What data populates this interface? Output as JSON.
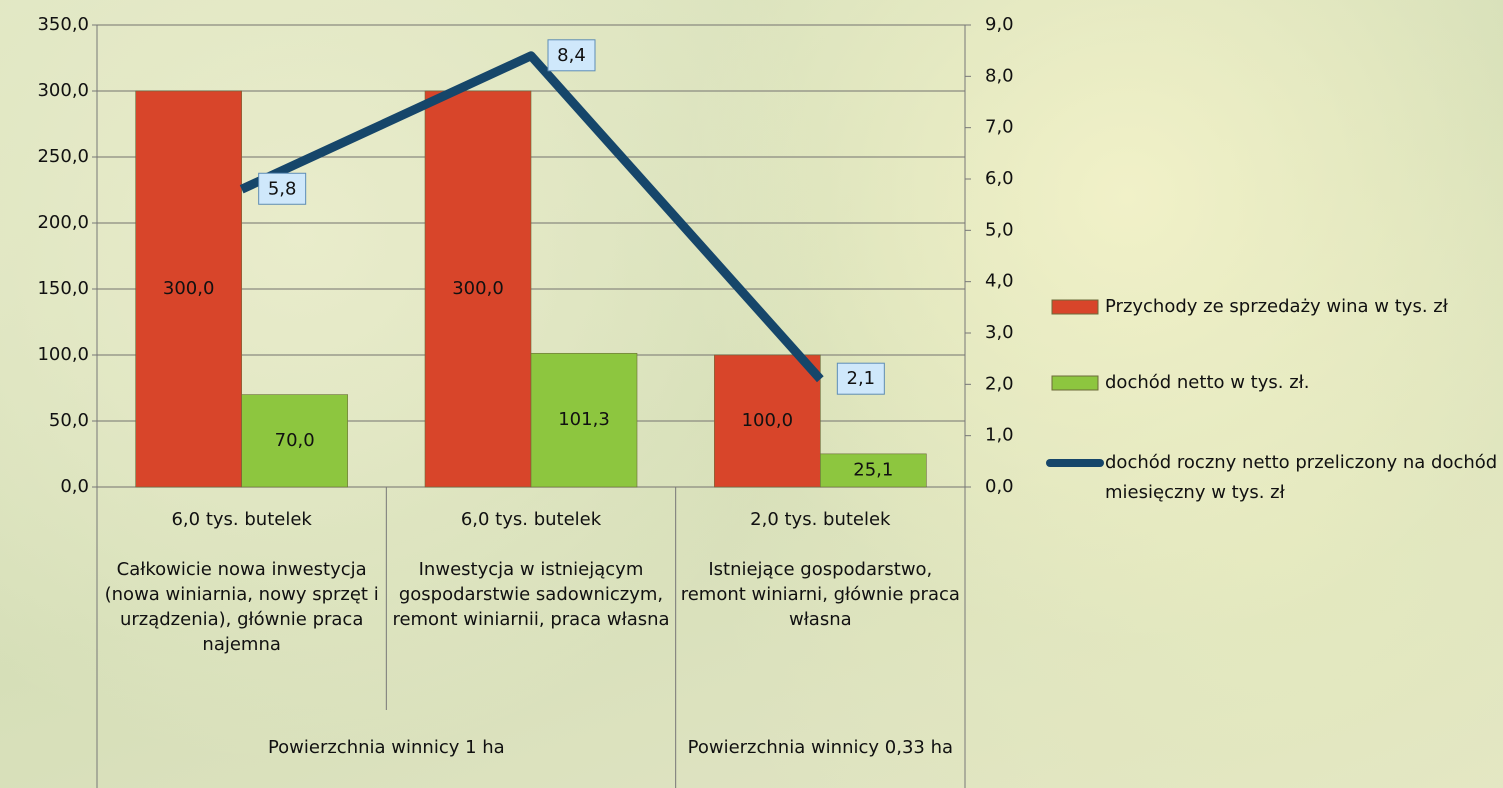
{
  "chart_data": {
    "type": "bar",
    "categories": [
      "6,0 tys. butelek",
      "6,0 tys. butelek",
      "2,0 tys. butelek"
    ],
    "category_descriptions": [
      "Całkowicie nowa inwestycja (nowa winiarnia, nowy sprzęt i urządzenia), głównie praca najemna",
      "Inwestycja w istniejącym gospodarstwie sadowniczym, remont winiarnii, praca własna",
      "Istniejące gospodarstwo, remont winiarni, głównie praca własna"
    ],
    "category_groups": [
      "Powierzchnia winnicy 1 ha",
      "Powierzchnia winnicy 1 ha",
      "Powierzchnia winnicy 0,33 ha"
    ],
    "series": [
      {
        "name": "Przychody ze sprzedaży wina w tys. zł",
        "type": "bar",
        "color": "#d8452a",
        "values": [
          300,
          300,
          100
        ],
        "value_labels": [
          "300,0",
          "300,0",
          "100,0"
        ]
      },
      {
        "name": "dochód netto w tys. zł.",
        "type": "bar",
        "color": "#8dc63f",
        "values": [
          70,
          101.3,
          25.1
        ],
        "value_labels": [
          "70,0",
          "101,3",
          "25,1"
        ]
      },
      {
        "name": "dochód roczny netto przeliczony na dochód miesięczny w tys. zł",
        "type": "line",
        "axis": "y2",
        "color": "#16466a",
        "values": [
          5.8,
          8.4,
          2.1
        ],
        "value_labels": [
          "5,8",
          "8,4",
          "2,1"
        ]
      }
    ],
    "ylim": [
      0,
      350
    ],
    "yticks": [
      {
        "value": 0,
        "label": "0,0"
      },
      {
        "value": 50,
        "label": "50,0"
      },
      {
        "value": 100,
        "label": "100,0"
      },
      {
        "value": 150,
        "label": "150,0"
      },
      {
        "value": 200,
        "label": "200,0"
      },
      {
        "value": 250,
        "label": "250,0"
      },
      {
        "value": 300,
        "label": "300,0"
      },
      {
        "value": 350,
        "label": "350,0"
      }
    ],
    "y2lim": [
      0,
      9
    ],
    "y2ticks": [
      {
        "value": 0,
        "label": "0,0"
      },
      {
        "value": 1,
        "label": "1,0"
      },
      {
        "value": 2,
        "label": "2,0"
      },
      {
        "value": 3,
        "label": "3,0"
      },
      {
        "value": 4,
        "label": "4,0"
      },
      {
        "value": 5,
        "label": "5,0"
      },
      {
        "value": 6,
        "label": "6,0"
      },
      {
        "value": 7,
        "label": "7,0"
      },
      {
        "value": 8,
        "label": "8,0"
      },
      {
        "value": 9,
        "label": "9,0"
      }
    ],
    "grid": true,
    "legend": "right"
  }
}
